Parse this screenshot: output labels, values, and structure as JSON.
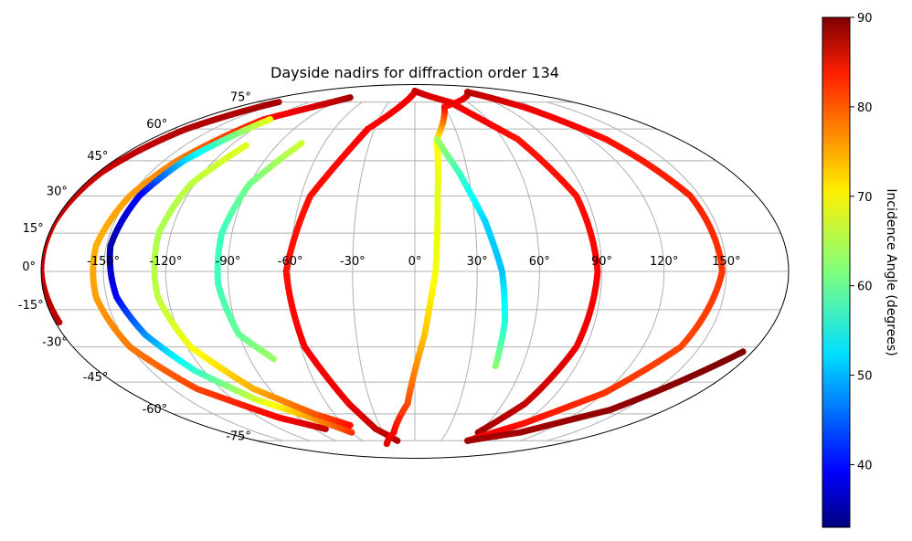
{
  "chart_data": {
    "type": "scatter",
    "projection": "mollweide",
    "title": "Dayside nadirs for diffraction order 134",
    "colorbar": {
      "label": "Incidence Angle (degrees)",
      "colormap": "jet",
      "range": [
        33,
        90
      ],
      "ticks": [
        "40",
        "50",
        "60",
        "70",
        "80",
        "90"
      ],
      "tick_values": [
        40,
        50,
        60,
        70,
        80,
        90
      ]
    },
    "grid": true,
    "lon_ticks": [
      {
        "value": -150,
        "label": "-150°"
      },
      {
        "value": -120,
        "label": "-120°"
      },
      {
        "value": -90,
        "label": "-90°"
      },
      {
        "value": -60,
        "label": "-60°"
      },
      {
        "value": -30,
        "label": "-30°"
      },
      {
        "value": 0,
        "label": "0°"
      },
      {
        "value": 30,
        "label": "30°"
      },
      {
        "value": 60,
        "label": "60°"
      },
      {
        "value": 90,
        "label": "90°"
      },
      {
        "value": 120,
        "label": "120°"
      },
      {
        "value": 150,
        "label": "150°"
      }
    ],
    "lat_ticks": [
      {
        "value": 75,
        "label": "75°"
      },
      {
        "value": 60,
        "label": "60°"
      },
      {
        "value": 45,
        "label": "45°"
      },
      {
        "value": 30,
        "label": "30°"
      },
      {
        "value": 15,
        "label": "15°"
      },
      {
        "value": 0,
        "label": "0°"
      },
      {
        "value": -15,
        "label": "-15°"
      },
      {
        "value": -30,
        "label": "-30°"
      },
      {
        "value": -45,
        "label": "-45°"
      },
      {
        "value": -60,
        "label": "-60°"
      },
      {
        "value": -75,
        "label": "-75°"
      }
    ],
    "series": [
      {
        "points": [
          [
            -155,
            75,
            88
          ],
          [
            -170,
            60,
            87
          ],
          [
            -178,
            40,
            86
          ],
          [
            -180,
            20,
            86
          ],
          [
            -180,
            0,
            86
          ],
          [
            -178,
            -20,
            87
          ]
        ]
      },
      {
        "points": [
          [
            -85,
            78,
            88
          ],
          [
            -125,
            65,
            82
          ],
          [
            -142,
            45,
            76
          ],
          [
            -150,
            30,
            74
          ],
          [
            -155,
            10,
            73
          ],
          [
            -155,
            -10,
            74
          ],
          [
            -150,
            -30,
            76
          ],
          [
            -135,
            -48,
            79
          ],
          [
            -105,
            -62,
            83
          ],
          [
            -80,
            -68,
            86
          ]
        ]
      },
      {
        "points": [
          [
            -120,
            65,
            68
          ],
          [
            -138,
            45,
            52
          ],
          [
            -145,
            30,
            40
          ],
          [
            -148,
            10,
            35
          ],
          [
            -145,
            -10,
            40
          ],
          [
            -138,
            -25,
            48
          ],
          [
            -125,
            -40,
            57
          ],
          [
            -105,
            -53,
            66
          ],
          [
            -80,
            -62,
            74
          ],
          [
            -60,
            -70,
            80
          ]
        ]
      },
      {
        "points": [
          [
            -75,
            53,
            66
          ],
          [
            -90,
            35,
            61
          ],
          [
            -95,
            15,
            58
          ],
          [
            -95,
            -5,
            58
          ],
          [
            -90,
            -25,
            60
          ],
          [
            -77,
            -35,
            63
          ]
        ]
      },
      {
        "points": [
          [
            -110,
            52,
            67
          ],
          [
            -122,
            35,
            65
          ],
          [
            -126,
            15,
            64
          ],
          [
            -125,
            -10,
            65
          ],
          [
            -118,
            -30,
            68
          ],
          [
            -100,
            -48,
            73
          ],
          [
            -75,
            -60,
            78
          ],
          [
            -55,
            -66,
            82
          ]
        ]
      },
      {
        "points": [
          [
            0,
            82,
            84
          ],
          [
            -35,
            60,
            83
          ],
          [
            -55,
            30,
            82
          ],
          [
            -62,
            0,
            82
          ],
          [
            -58,
            -30,
            83
          ],
          [
            -45,
            -55,
            84
          ],
          [
            -35,
            -68,
            86
          ],
          [
            -20,
            -75,
            87
          ]
        ]
      },
      {
        "points": [
          [
            -35,
            -77,
            85
          ],
          [
            -20,
            -70,
            83
          ],
          [
            -5,
            -55,
            79
          ],
          [
            5,
            -25,
            72
          ],
          [
            10,
            0,
            68
          ],
          [
            12,
            30,
            67
          ],
          [
            15,
            55,
            69
          ],
          [
            30,
            72,
            82
          ],
          [
            90,
            82,
            86
          ]
        ]
      },
      {
        "points": [
          [
            15,
            55,
            64
          ],
          [
            25,
            40,
            58
          ],
          [
            35,
            20,
            52
          ],
          [
            42,
            0,
            51
          ],
          [
            45,
            -20,
            56
          ],
          [
            45,
            -38,
            62
          ]
        ]
      },
      {
        "points": [
          [
            0,
            83,
            86
          ],
          [
            40,
            75,
            84
          ],
          [
            70,
            55,
            82
          ],
          [
            85,
            30,
            82
          ],
          [
            88,
            0,
            83
          ],
          [
            85,
            -30,
            84
          ],
          [
            75,
            -55,
            86
          ],
          [
            60,
            -70,
            88
          ]
        ]
      },
      {
        "points": [
          [
            90,
            82,
            87
          ],
          [
            110,
            72,
            84
          ],
          [
            130,
            55,
            82
          ],
          [
            145,
            30,
            81
          ],
          [
            148,
            0,
            80
          ],
          [
            140,
            -30,
            79
          ],
          [
            120,
            -50,
            80
          ],
          [
            90,
            -65,
            82
          ],
          [
            60,
            -75,
            84
          ]
        ]
      },
      {
        "points": [
          [
            60,
            -75,
            88
          ],
          [
            100,
            -70,
            88
          ],
          [
            140,
            -58,
            89
          ],
          [
            175,
            -32,
            90
          ]
        ]
      }
    ]
  }
}
